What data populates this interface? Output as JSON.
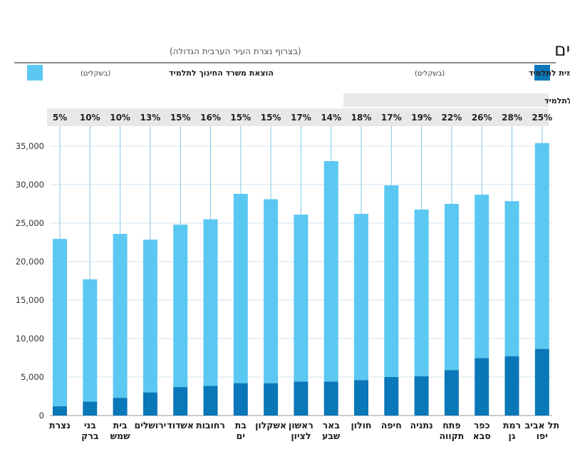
{
  "title": "ההשקעה לתלמיד בערים מעל מאה אלף תושבים",
  "subtitle": "(בצרוף נצרת העיר הערבית הגדולה)",
  "legend": {
    "ministry": {
      "label": "הוצאת משרד החינוך לתלמיד",
      "unit": "(בשקלים)",
      "color": "#5bc8f2"
    },
    "municipal": {
      "label": "הוצאת הרשות המקומית לתלמיד",
      "unit": "(בשקלים)",
      "color": "#0a77b8"
    }
  },
  "pct_header": "אחוז השקעת הרשות מתוך ההוצאה הציבורית לתלמיד",
  "chart_data": {
    "type": "bar",
    "stacked": true,
    "title": "ההשקעה לתלמיד בערים מעל מאה אלף תושבים",
    "subtitle": "(בצרוף נצרת העיר הערבית הגדולה)",
    "xlabel": "",
    "ylabel": "",
    "ylim": [
      0,
      35000
    ],
    "yticks": [
      "0",
      "5,000",
      "10,000",
      "15,000",
      "20,000",
      "25,000",
      "30,000",
      "35,000"
    ],
    "grid": true,
    "legend_position": "top",
    "categories": [
      [
        "נצרת"
      ],
      [
        "בני",
        "ברק"
      ],
      [
        "בית",
        "שמש"
      ],
      [
        "ירושלים"
      ],
      [
        "אשדוד"
      ],
      [
        "רחובות"
      ],
      [
        "בת",
        "ים"
      ],
      [
        "אשקלון"
      ],
      [
        "ראשון",
        "לציון"
      ],
      [
        "באר",
        "שבע"
      ],
      [
        "חולון"
      ],
      [
        "חיפה"
      ],
      [
        "נתניה"
      ],
      [
        "פתח",
        "תקווה"
      ],
      [
        "כפר",
        "סבא"
      ],
      [
        "רמת",
        "גן"
      ],
      [
        "תל אביב",
        "יפו"
      ]
    ],
    "series": [
      {
        "name": "הוצאת הרשות המקומית לתלמיד",
        "color": "#0a77b8",
        "values": [
          1200,
          1800,
          2300,
          3000,
          3700,
          3850,
          4200,
          4200,
          4400,
          4400,
          4600,
          5000,
          5100,
          5900,
          7450,
          7700,
          8650
        ]
      },
      {
        "name": "הוצאת משרד החינוך לתלמיד",
        "color": "#5bc8f2",
        "values": [
          21750,
          15900,
          21300,
          19850,
          21100,
          21650,
          24600,
          23900,
          21700,
          28650,
          21600,
          24900,
          21650,
          21600,
          21250,
          20150,
          26750
        ]
      }
    ],
    "totals": [
      22950,
      17700,
      23600,
      22850,
      24800,
      25500,
      28800,
      28100,
      26100,
      33050,
      26200,
      29900,
      26750,
      27500,
      28700,
      27850,
      35400
    ],
    "percent_labels": [
      "5%",
      "10%",
      "10%",
      "13%",
      "15%",
      "16%",
      "15%",
      "15%",
      "17%",
      "14%",
      "18%",
      "17%",
      "19%",
      "22%",
      "26%",
      "28%",
      "25%"
    ]
  }
}
